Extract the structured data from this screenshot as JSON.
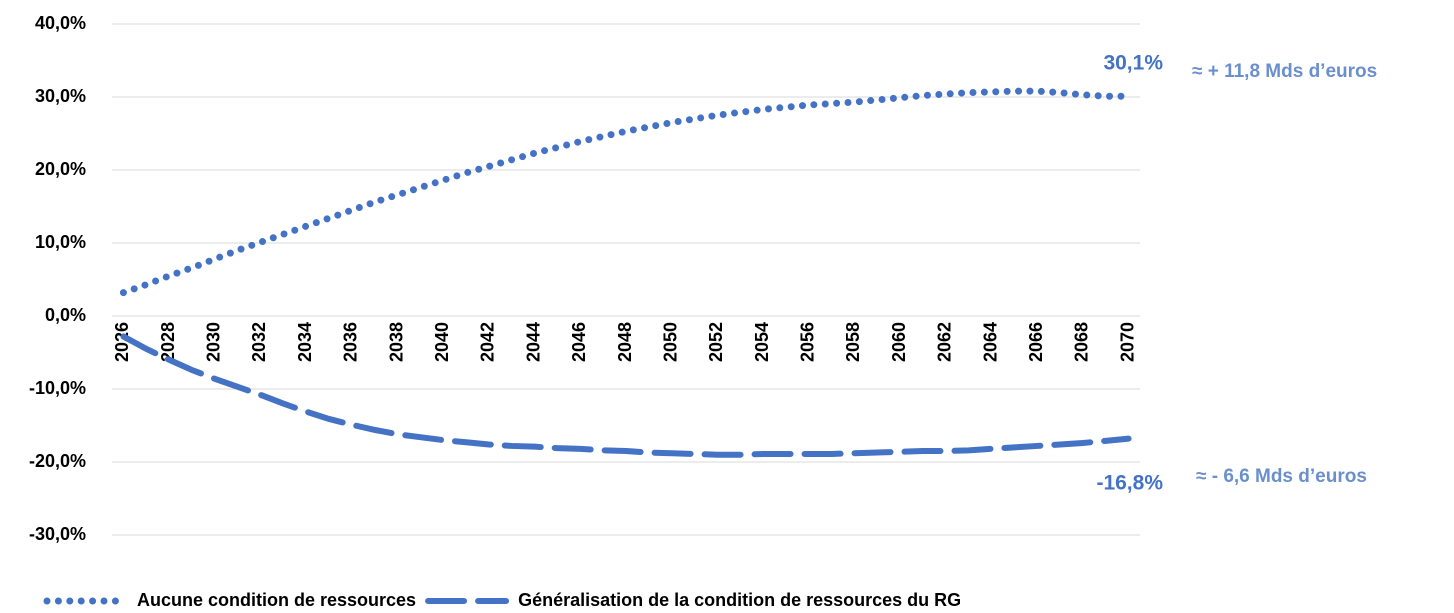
{
  "chart_data": {
    "type": "line",
    "categories": [
      "2026",
      null,
      "2028",
      null,
      "2030",
      null,
      "2032",
      null,
      "2034",
      null,
      "2036",
      null,
      "2038",
      null,
      "2040",
      null,
      "2042",
      null,
      "2044",
      null,
      "2046",
      null,
      "2048",
      null,
      "2050",
      null,
      "2052",
      null,
      "2054",
      null,
      "2056",
      null,
      "2058",
      null,
      "2060",
      null,
      "2062",
      null,
      "2064",
      null,
      "2066",
      null,
      "2068",
      null,
      "2070"
    ],
    "series": [
      {
        "name": "Aucune condition de ressources",
        "color": "#4472c4",
        "dash": "dot",
        "values": [
          3.2,
          4.3,
          5.5,
          6.6,
          7.8,
          9.0,
          10.1,
          11.2,
          12.3,
          13.4,
          14.5,
          15.6,
          16.6,
          17.6,
          18.6,
          19.6,
          20.5,
          21.4,
          22.3,
          23.1,
          23.9,
          24.6,
          25.3,
          25.9,
          26.5,
          27.0,
          27.5,
          27.9,
          28.3,
          28.6,
          28.9,
          29.1,
          29.3,
          29.6,
          29.9,
          30.2,
          30.4,
          30.6,
          30.7,
          30.8,
          30.8,
          30.6,
          30.3,
          30.1,
          30.1
        ]
      },
      {
        "name": "Généralisation de la condition de ressources du RG",
        "color": "#4472c4",
        "dash": "dash",
        "values": [
          -2.8,
          -4.5,
          -6.0,
          -7.4,
          -8.6,
          -9.7,
          -10.8,
          -12.0,
          -13.1,
          -14.1,
          -14.9,
          -15.6,
          -16.2,
          -16.6,
          -17.0,
          -17.3,
          -17.6,
          -17.8,
          -17.9,
          -18.1,
          -18.2,
          -18.4,
          -18.5,
          -18.7,
          -18.8,
          -18.9,
          -19.0,
          -19.0,
          -18.9,
          -18.9,
          -18.9,
          -18.9,
          -18.8,
          -18.7,
          -18.6,
          -18.5,
          -18.5,
          -18.4,
          -18.2,
          -18.0,
          -17.8,
          -17.6,
          -17.4,
          -17.1,
          -16.8
        ]
      }
    ],
    "annotations": [
      "30,1%",
      "≈  + 11,8 Mds d’euros",
      "-16,8%",
      "≈  - 6,6 Mds d’euros"
    ],
    "ylim": [
      -30,
      40
    ],
    "yticks": [
      {
        "value": -30,
        "label": "-30,0%"
      },
      {
        "value": -20,
        "label": "-20,0%"
      },
      {
        "value": -10,
        "label": "-10,0%"
      },
      {
        "value": 0,
        "label": "0,0%"
      },
      {
        "value": 10,
        "label": "10,0%"
      },
      {
        "value": 20,
        "label": "20,0%"
      },
      {
        "value": 30,
        "label": "30,0%"
      },
      {
        "value": 40,
        "label": "40,0%"
      }
    ],
    "grid": true,
    "legend": "bottom"
  }
}
